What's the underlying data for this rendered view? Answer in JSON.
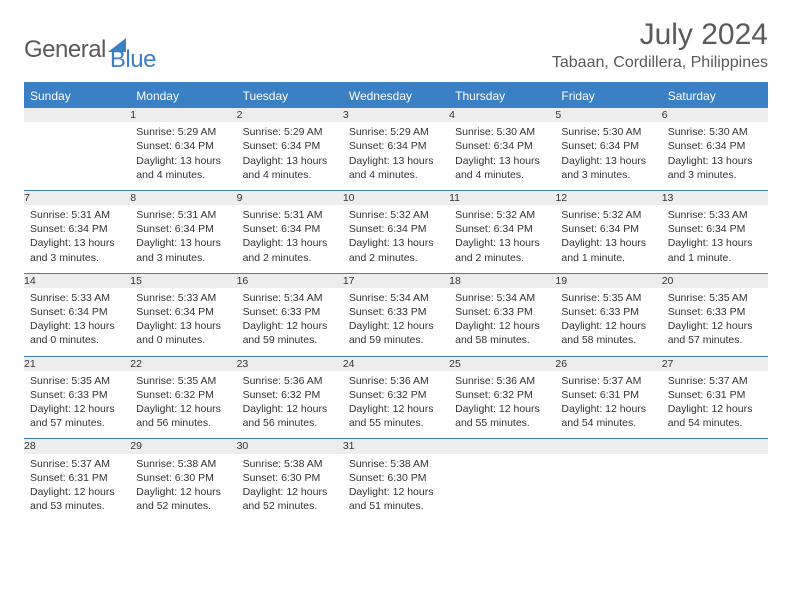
{
  "logo": {
    "part1": "General",
    "part2": "Blue"
  },
  "month_year": "July 2024",
  "location": "Tabaan, Cordillera, Philippines",
  "weekdays": [
    "Sunday",
    "Monday",
    "Tuesday",
    "Wednesday",
    "Thursday",
    "Friday",
    "Saturday"
  ],
  "colors": {
    "header_bg": "#3b7fc4",
    "day_number_bg": "#ededed",
    "text": "#333333",
    "muted": "#5a5a5a"
  },
  "weeks": [
    {
      "numbers": [
        "",
        "1",
        "2",
        "3",
        "4",
        "5",
        "6"
      ],
      "cells": [
        null,
        {
          "sunrise": "Sunrise: 5:29 AM",
          "sunset": "Sunset: 6:34 PM",
          "daylight1": "Daylight: 13 hours",
          "daylight2": "and 4 minutes."
        },
        {
          "sunrise": "Sunrise: 5:29 AM",
          "sunset": "Sunset: 6:34 PM",
          "daylight1": "Daylight: 13 hours",
          "daylight2": "and 4 minutes."
        },
        {
          "sunrise": "Sunrise: 5:29 AM",
          "sunset": "Sunset: 6:34 PM",
          "daylight1": "Daylight: 13 hours",
          "daylight2": "and 4 minutes."
        },
        {
          "sunrise": "Sunrise: 5:30 AM",
          "sunset": "Sunset: 6:34 PM",
          "daylight1": "Daylight: 13 hours",
          "daylight2": "and 4 minutes."
        },
        {
          "sunrise": "Sunrise: 5:30 AM",
          "sunset": "Sunset: 6:34 PM",
          "daylight1": "Daylight: 13 hours",
          "daylight2": "and 3 minutes."
        },
        {
          "sunrise": "Sunrise: 5:30 AM",
          "sunset": "Sunset: 6:34 PM",
          "daylight1": "Daylight: 13 hours",
          "daylight2": "and 3 minutes."
        }
      ]
    },
    {
      "numbers": [
        "7",
        "8",
        "9",
        "10",
        "11",
        "12",
        "13"
      ],
      "cells": [
        {
          "sunrise": "Sunrise: 5:31 AM",
          "sunset": "Sunset: 6:34 PM",
          "daylight1": "Daylight: 13 hours",
          "daylight2": "and 3 minutes."
        },
        {
          "sunrise": "Sunrise: 5:31 AM",
          "sunset": "Sunset: 6:34 PM",
          "daylight1": "Daylight: 13 hours",
          "daylight2": "and 3 minutes."
        },
        {
          "sunrise": "Sunrise: 5:31 AM",
          "sunset": "Sunset: 6:34 PM",
          "daylight1": "Daylight: 13 hours",
          "daylight2": "and 2 minutes."
        },
        {
          "sunrise": "Sunrise: 5:32 AM",
          "sunset": "Sunset: 6:34 PM",
          "daylight1": "Daylight: 13 hours",
          "daylight2": "and 2 minutes."
        },
        {
          "sunrise": "Sunrise: 5:32 AM",
          "sunset": "Sunset: 6:34 PM",
          "daylight1": "Daylight: 13 hours",
          "daylight2": "and 2 minutes."
        },
        {
          "sunrise": "Sunrise: 5:32 AM",
          "sunset": "Sunset: 6:34 PM",
          "daylight1": "Daylight: 13 hours",
          "daylight2": "and 1 minute."
        },
        {
          "sunrise": "Sunrise: 5:33 AM",
          "sunset": "Sunset: 6:34 PM",
          "daylight1": "Daylight: 13 hours",
          "daylight2": "and 1 minute."
        }
      ]
    },
    {
      "numbers": [
        "14",
        "15",
        "16",
        "17",
        "18",
        "19",
        "20"
      ],
      "cells": [
        {
          "sunrise": "Sunrise: 5:33 AM",
          "sunset": "Sunset: 6:34 PM",
          "daylight1": "Daylight: 13 hours",
          "daylight2": "and 0 minutes."
        },
        {
          "sunrise": "Sunrise: 5:33 AM",
          "sunset": "Sunset: 6:34 PM",
          "daylight1": "Daylight: 13 hours",
          "daylight2": "and 0 minutes."
        },
        {
          "sunrise": "Sunrise: 5:34 AM",
          "sunset": "Sunset: 6:33 PM",
          "daylight1": "Daylight: 12 hours",
          "daylight2": "and 59 minutes."
        },
        {
          "sunrise": "Sunrise: 5:34 AM",
          "sunset": "Sunset: 6:33 PM",
          "daylight1": "Daylight: 12 hours",
          "daylight2": "and 59 minutes."
        },
        {
          "sunrise": "Sunrise: 5:34 AM",
          "sunset": "Sunset: 6:33 PM",
          "daylight1": "Daylight: 12 hours",
          "daylight2": "and 58 minutes."
        },
        {
          "sunrise": "Sunrise: 5:35 AM",
          "sunset": "Sunset: 6:33 PM",
          "daylight1": "Daylight: 12 hours",
          "daylight2": "and 58 minutes."
        },
        {
          "sunrise": "Sunrise: 5:35 AM",
          "sunset": "Sunset: 6:33 PM",
          "daylight1": "Daylight: 12 hours",
          "daylight2": "and 57 minutes."
        }
      ]
    },
    {
      "numbers": [
        "21",
        "22",
        "23",
        "24",
        "25",
        "26",
        "27"
      ],
      "cells": [
        {
          "sunrise": "Sunrise: 5:35 AM",
          "sunset": "Sunset: 6:33 PM",
          "daylight1": "Daylight: 12 hours",
          "daylight2": "and 57 minutes."
        },
        {
          "sunrise": "Sunrise: 5:35 AM",
          "sunset": "Sunset: 6:32 PM",
          "daylight1": "Daylight: 12 hours",
          "daylight2": "and 56 minutes."
        },
        {
          "sunrise": "Sunrise: 5:36 AM",
          "sunset": "Sunset: 6:32 PM",
          "daylight1": "Daylight: 12 hours",
          "daylight2": "and 56 minutes."
        },
        {
          "sunrise": "Sunrise: 5:36 AM",
          "sunset": "Sunset: 6:32 PM",
          "daylight1": "Daylight: 12 hours",
          "daylight2": "and 55 minutes."
        },
        {
          "sunrise": "Sunrise: 5:36 AM",
          "sunset": "Sunset: 6:32 PM",
          "daylight1": "Daylight: 12 hours",
          "daylight2": "and 55 minutes."
        },
        {
          "sunrise": "Sunrise: 5:37 AM",
          "sunset": "Sunset: 6:31 PM",
          "daylight1": "Daylight: 12 hours",
          "daylight2": "and 54 minutes."
        },
        {
          "sunrise": "Sunrise: 5:37 AM",
          "sunset": "Sunset: 6:31 PM",
          "daylight1": "Daylight: 12 hours",
          "daylight2": "and 54 minutes."
        }
      ]
    },
    {
      "numbers": [
        "28",
        "29",
        "30",
        "31",
        "",
        "",
        ""
      ],
      "cells": [
        {
          "sunrise": "Sunrise: 5:37 AM",
          "sunset": "Sunset: 6:31 PM",
          "daylight1": "Daylight: 12 hours",
          "daylight2": "and 53 minutes."
        },
        {
          "sunrise": "Sunrise: 5:38 AM",
          "sunset": "Sunset: 6:30 PM",
          "daylight1": "Daylight: 12 hours",
          "daylight2": "and 52 minutes."
        },
        {
          "sunrise": "Sunrise: 5:38 AM",
          "sunset": "Sunset: 6:30 PM",
          "daylight1": "Daylight: 12 hours",
          "daylight2": "and 52 minutes."
        },
        {
          "sunrise": "Sunrise: 5:38 AM",
          "sunset": "Sunset: 6:30 PM",
          "daylight1": "Daylight: 12 hours",
          "daylight2": "and 51 minutes."
        },
        null,
        null,
        null
      ]
    }
  ]
}
